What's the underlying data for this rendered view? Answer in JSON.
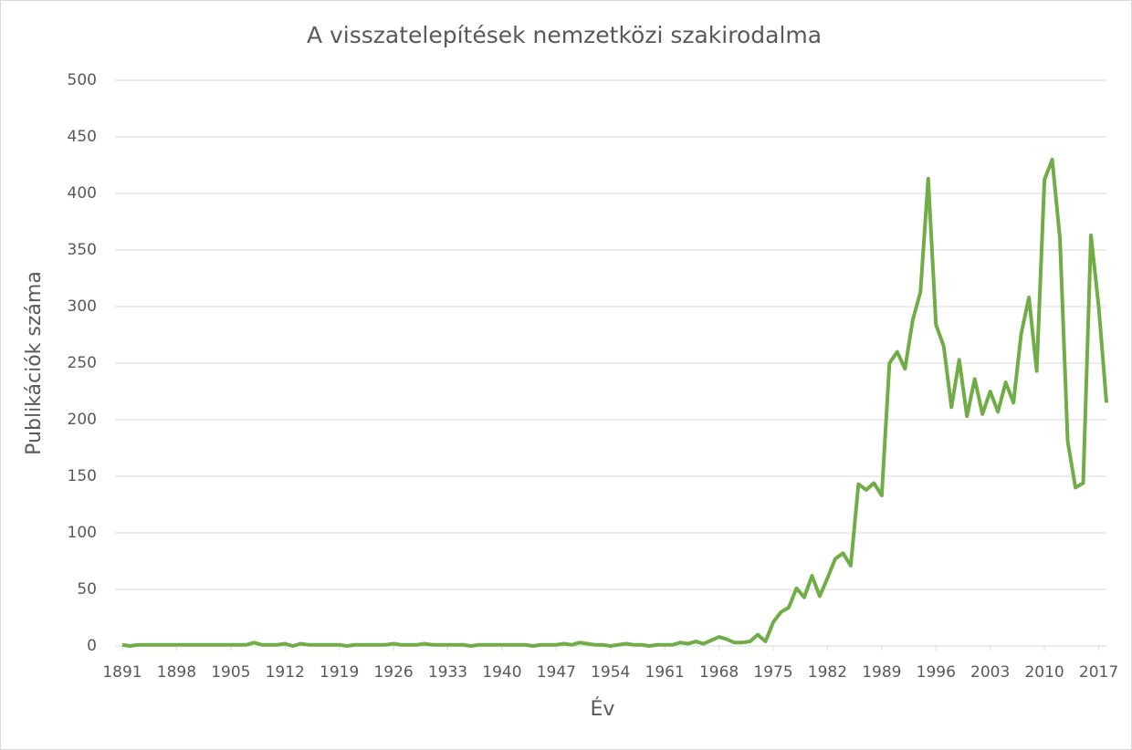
{
  "chart_data": {
    "type": "line",
    "title": "A visszatelepítések nemzetközi szakirodalma",
    "x_label": "Év",
    "y_label": "Publikációk száma",
    "x": [
      1891,
      1892,
      1893,
      1894,
      1895,
      1896,
      1897,
      1898,
      1899,
      1900,
      1901,
      1902,
      1903,
      1904,
      1905,
      1906,
      1907,
      1908,
      1909,
      1910,
      1911,
      1912,
      1913,
      1914,
      1915,
      1916,
      1917,
      1918,
      1919,
      1920,
      1921,
      1922,
      1923,
      1924,
      1925,
      1926,
      1927,
      1928,
      1929,
      1930,
      1931,
      1932,
      1933,
      1934,
      1935,
      1936,
      1937,
      1938,
      1939,
      1940,
      1941,
      1942,
      1943,
      1944,
      1945,
      1946,
      1947,
      1948,
      1949,
      1950,
      1951,
      1952,
      1953,
      1954,
      1955,
      1956,
      1957,
      1958,
      1959,
      1960,
      1961,
      1962,
      1963,
      1964,
      1965,
      1966,
      1967,
      1968,
      1969,
      1970,
      1971,
      1972,
      1973,
      1974,
      1975,
      1976,
      1977,
      1978,
      1979,
      1980,
      1981,
      1982,
      1983,
      1984,
      1985,
      1986,
      1987,
      1988,
      1989,
      1990,
      1991,
      1992,
      1993,
      1994,
      1995,
      1996,
      1997,
      1998,
      1999,
      2000,
      2001,
      2002,
      2003,
      2004,
      2005,
      2006,
      2007,
      2008,
      2009,
      2010,
      2011,
      2012,
      2013,
      2014,
      2015,
      2016,
      2017,
      2018
    ],
    "series": [
      {
        "color": "#70ad47",
        "values": [
          1,
          0,
          1,
          1,
          1,
          1,
          1,
          1,
          1,
          1,
          1,
          1,
          1,
          1,
          1,
          1,
          1,
          3,
          1,
          1,
          1,
          2,
          0,
          2,
          1,
          1,
          1,
          1,
          1,
          0,
          1,
          1,
          1,
          1,
          1,
          2,
          1,
          1,
          1,
          2,
          1,
          1,
          1,
          1,
          1,
          0,
          1,
          1,
          1,
          1,
          1,
          1,
          1,
          0,
          1,
          1,
          1,
          2,
          1,
          3,
          2,
          1,
          1,
          0,
          1,
          2,
          1,
          1,
          0,
          1,
          1,
          1,
          3,
          2,
          4,
          2,
          5,
          8,
          6,
          3,
          3,
          4,
          10,
          4,
          21,
          30,
          34,
          51,
          43,
          62,
          44,
          60,
          77,
          82,
          71,
          143,
          138,
          144,
          133,
          250,
          260,
          245,
          288,
          313,
          413,
          284,
          265,
          211,
          253,
          203,
          236,
          205,
          225,
          207,
          233,
          215,
          276,
          308,
          243,
          412,
          430,
          360,
          181,
          140,
          144,
          363,
          300,
          215
        ]
      }
    ],
    "xlim": [
      1891,
      2018
    ],
    "xticks": [
      1891,
      1898,
      1905,
      1912,
      1919,
      1926,
      1933,
      1940,
      1947,
      1954,
      1961,
      1968,
      1975,
      1982,
      1989,
      1996,
      2003,
      2010,
      2017
    ],
    "ylim": [
      0,
      500
    ],
    "yticks": [
      0,
      50,
      100,
      150,
      200,
      250,
      300,
      350,
      400,
      450,
      500
    ],
    "grid": true
  }
}
